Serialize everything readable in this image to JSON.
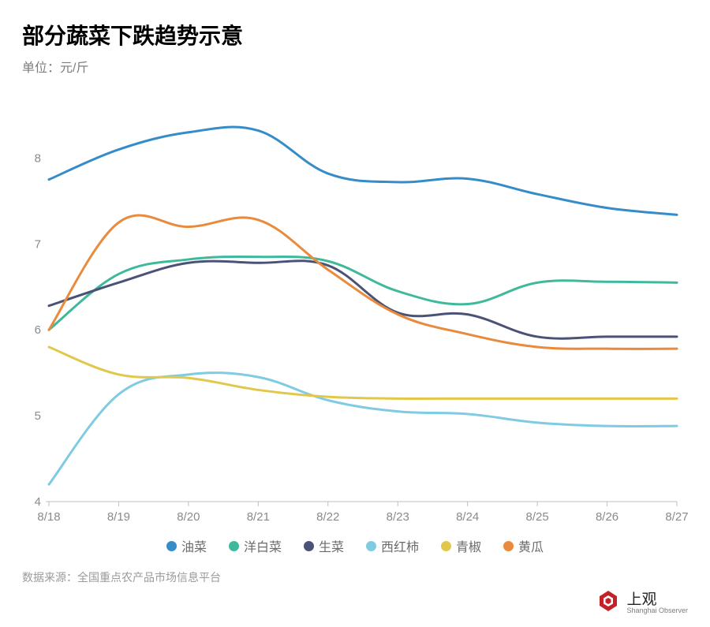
{
  "title": "部分蔬菜下跌趋势示意",
  "unit_label": "单位：元/斤",
  "source_prefix": "数据来源：",
  "source_name": "全国重点农产品市场信息平台",
  "brand": {
    "name": "上观",
    "sub": "Shanghai Observer",
    "color": "#c52128"
  },
  "chart": {
    "type": "line",
    "background_color": "#ffffff",
    "grid_color": "#eaeaea",
    "axis_line_color": "#bfbfbf",
    "axis_label_color": "#8a8a8a",
    "axis_fontsize": 15,
    "line_width": 3,
    "ylim": [
      4,
      8.5
    ],
    "ytick_values": [
      4,
      5,
      6,
      7,
      8
    ],
    "ytick_labels": [
      "4",
      "5",
      "6",
      "7",
      "8"
    ],
    "x_categories": [
      "8/18",
      "8/19",
      "8/20",
      "8/21",
      "8/22",
      "8/23",
      "8/24",
      "8/25",
      "8/26",
      "8/27"
    ],
    "series": [
      {
        "name": "油菜",
        "color": "#368cc9",
        "values": [
          7.75,
          8.1,
          8.3,
          8.32,
          7.82,
          7.72,
          7.76,
          7.58,
          7.42,
          7.34
        ]
      },
      {
        "name": "洋白菜",
        "color": "#3fb99b",
        "values": [
          6.0,
          6.65,
          6.82,
          6.85,
          6.8,
          6.45,
          6.3,
          6.55,
          6.56,
          6.55
        ]
      },
      {
        "name": "生菜",
        "color": "#4a5377",
        "values": [
          6.28,
          6.55,
          6.78,
          6.78,
          6.75,
          6.2,
          6.18,
          5.92,
          5.92,
          5.92
        ]
      },
      {
        "name": "西红柿",
        "color": "#7fcbe1",
        "values": [
          4.2,
          5.25,
          5.48,
          5.45,
          5.18,
          5.05,
          5.02,
          4.92,
          4.88,
          4.88
        ]
      },
      {
        "name": "青椒",
        "color": "#e2c84a",
        "values": [
          5.8,
          5.48,
          5.44,
          5.3,
          5.22,
          5.2,
          5.2,
          5.2,
          5.2,
          5.2
        ]
      },
      {
        "name": "黄瓜",
        "color": "#e98a3c",
        "values": [
          6.0,
          7.25,
          7.2,
          7.28,
          6.7,
          6.18,
          5.95,
          5.8,
          5.78,
          5.78
        ]
      }
    ]
  }
}
